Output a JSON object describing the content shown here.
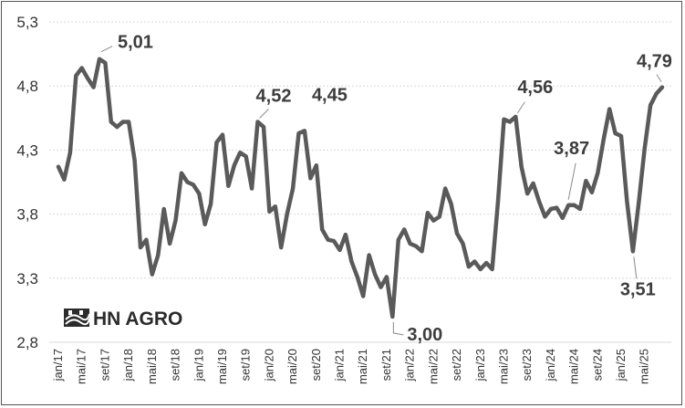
{
  "logo": {
    "text": "HN AGRO"
  },
  "colors": {
    "line": "#5a5a5a",
    "grid": "#d9d9d9",
    "text": "#333333",
    "annotation": "#3d3d3d"
  },
  "chart_data": {
    "type": "line",
    "title": "",
    "xlabel": "",
    "ylabel": "",
    "ylim": [
      2.8,
      5.3
    ],
    "yticks": [
      "2,8",
      "3,3",
      "3,8",
      "4,3",
      "4,8",
      "5,3"
    ],
    "ytick_values": [
      2.8,
      3.3,
      3.8,
      4.3,
      4.8,
      5.3
    ],
    "grid": "horizontal-dashed",
    "xtick_labels": [
      "jan/17",
      "mai/17",
      "set/17",
      "jan/18",
      "mai/18",
      "set/18",
      "jan/19",
      "mai/19",
      "set/19",
      "jan/20",
      "mai/20",
      "set/20",
      "jan/21",
      "mai/21",
      "set/21",
      "jan/22",
      "mai/22",
      "set/22",
      "jan/23",
      "mai/23",
      "set/23",
      "jan/24",
      "mai/24",
      "set/24",
      "jan/25",
      "mai/25"
    ],
    "series": [
      {
        "values": [
          4.17,
          4.07,
          4.28,
          4.88,
          4.94,
          4.86,
          4.79,
          5.01,
          4.98,
          4.52,
          4.48,
          4.52,
          4.52,
          4.22,
          3.54,
          3.6,
          3.33,
          3.48,
          3.84,
          3.57,
          3.75,
          4.12,
          4.05,
          4.03,
          3.96,
          3.72,
          3.88,
          4.36,
          4.42,
          4.02,
          4.18,
          4.28,
          4.25,
          4.0,
          4.52,
          4.48,
          3.82,
          3.86,
          3.54,
          3.8,
          4.0,
          4.43,
          4.45,
          4.08,
          4.18,
          3.68,
          3.6,
          3.59,
          3.52,
          3.64,
          3.43,
          3.31,
          3.16,
          3.48,
          3.33,
          3.23,
          3.31,
          3.0,
          3.6,
          3.68,
          3.57,
          3.55,
          3.51,
          3.81,
          3.75,
          3.78,
          4.0,
          3.88,
          3.65,
          3.57,
          3.39,
          3.43,
          3.37,
          3.42,
          3.37,
          3.9,
          4.54,
          4.52,
          4.56,
          4.17,
          3.96,
          4.04,
          3.9,
          3.78,
          3.84,
          3.85,
          3.77,
          3.87,
          3.87,
          3.84,
          4.06,
          3.97,
          4.12,
          4.38,
          4.62,
          4.43,
          4.41,
          3.9,
          3.51,
          3.89,
          4.31,
          4.65,
          4.74,
          4.79
        ]
      }
    ],
    "annotations": [
      {
        "label": "5,01",
        "index": 7
      },
      {
        "label": "4,52",
        "index": 34
      },
      {
        "label": "4,45",
        "index": 42
      },
      {
        "label": "3,00",
        "index": 57
      },
      {
        "label": "4,56",
        "index": 78
      },
      {
        "label": "3,87",
        "index": 87
      },
      {
        "label": "3,51",
        "index": 98
      },
      {
        "label": "4,79",
        "index": 103
      }
    ]
  }
}
